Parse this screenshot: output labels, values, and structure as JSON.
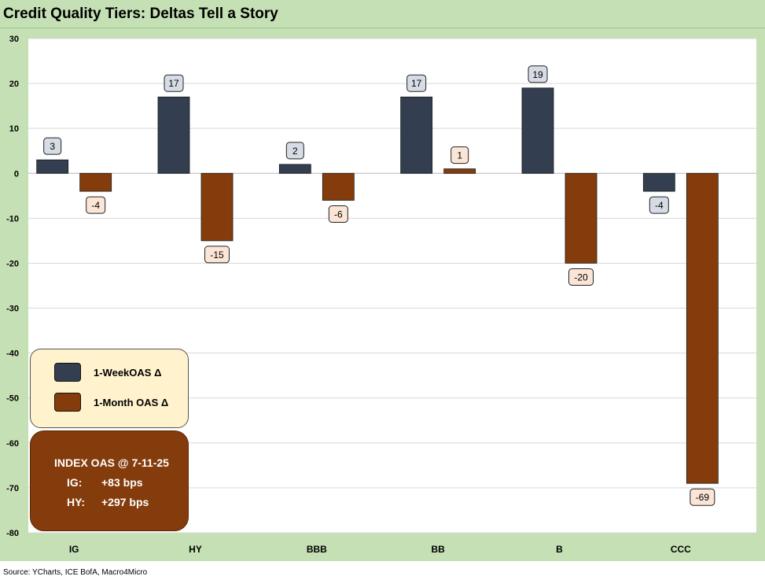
{
  "title": "Credit Quality Tiers: Deltas Tell a Story",
  "source": "Source: YCharts, ICE BofA, Macro4Micro",
  "colors": {
    "week": "#333f50",
    "month": "#843c0c",
    "frame": "#c5e0b4"
  },
  "legend": {
    "week_label": "1-WeekOAS Δ",
    "month_label": "1-Month OAS Δ"
  },
  "index_box": {
    "title": "INDEX OAS @ 7-11-25",
    "ig_label": "IG:",
    "ig_value": "+83 bps",
    "hy_label": "HY:",
    "hy_value": "+297 bps"
  },
  "chart_data": {
    "type": "bar",
    "title": "Credit Quality Tiers: Deltas Tell a Story",
    "categories": [
      "IG",
      "HY",
      "BBB",
      "BB",
      "B",
      "CCC"
    ],
    "series": [
      {
        "name": "1-WeekOAS Δ",
        "values": [
          3,
          17,
          2,
          17,
          19,
          -4
        ]
      },
      {
        "name": "1-Month OAS Δ",
        "values": [
          -4,
          -15,
          -6,
          1,
          -20,
          -69
        ]
      }
    ],
    "ylim": [
      -80,
      30
    ],
    "yticks": [
      30,
      20,
      10,
      0,
      -10,
      -20,
      -30,
      -40,
      -50,
      -60,
      -70,
      -80
    ],
    "grid": true,
    "legend_position": "bottom-left"
  }
}
